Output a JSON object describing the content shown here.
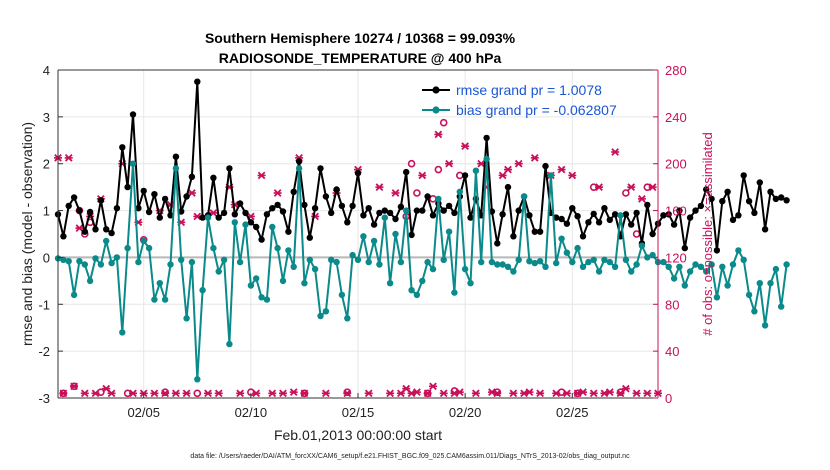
{
  "chart_data": {
    "type": "line",
    "title_line1": "Southern Hemisphere 10274 / 10368 = 99.093%",
    "title_line2": "RADIOSONDE_TEMPERATURE @ 400 hPa",
    "xlabel": "Feb.01,2013 00:00:00 start",
    "ylabel": "rmse and bias (model - observation)",
    "ylabel_right": "# of obs: o=possible; ×=assimilated",
    "footer": "data file: /Users/raeder/DAI/ATM_forcXX/CAM6_setup/f.e21.FHIST_BGC.f09_025.CAM6assim.011/Diags_NTrS_2013-02/obs_diag_output.nc",
    "xlim": [
      1,
      29
    ],
    "ylim": [
      -3,
      4
    ],
    "ylim_right": [
      0,
      280
    ],
    "xticks": [
      {
        "value": 5,
        "label": "02/05"
      },
      {
        "value": 10,
        "label": "02/10"
      },
      {
        "value": 15,
        "label": "02/15"
      },
      {
        "value": 20,
        "label": "02/20"
      },
      {
        "value": 25,
        "label": "02/25"
      }
    ],
    "yticks": [
      {
        "value": -3,
        "label": "-3"
      },
      {
        "value": -2,
        "label": "-2"
      },
      {
        "value": -1,
        "label": "-1"
      },
      {
        "value": 0,
        "label": "0"
      },
      {
        "value": 1,
        "label": "1"
      },
      {
        "value": 2,
        "label": "2"
      },
      {
        "value": 3,
        "label": "3"
      },
      {
        "value": 4,
        "label": "4"
      }
    ],
    "yticks_right": [
      {
        "value": 0,
        "label": "0"
      },
      {
        "value": 40,
        "label": "40"
      },
      {
        "value": 80,
        "label": "80"
      },
      {
        "value": 120,
        "label": "120"
      },
      {
        "value": 160,
        "label": "160"
      },
      {
        "value": 200,
        "label": "200"
      },
      {
        "value": 240,
        "label": "240"
      },
      {
        "value": 280,
        "label": "280"
      }
    ],
    "grid": true,
    "legend_position": "top-right",
    "x_start": 1.0,
    "x_step": 0.25,
    "series": [
      {
        "name": "rmse grand pr = 1.0078",
        "color": "#000000",
        "axis": "left",
        "values": [
          0.92,
          0.45,
          1.1,
          1.28,
          1.0,
          0.55,
          0.97,
          0.6,
          1.22,
          0.6,
          0.52,
          1.05,
          2.35,
          1.5,
          3.05,
          1.05,
          1.42,
          0.97,
          1.35,
          0.85,
          1.25,
          0.9,
          2.15,
          0.98,
          1.3,
          1.72,
          3.75,
          0.85,
          0.9,
          1.7,
          0.85,
          0.95,
          1.9,
          0.92,
          1.15,
          0.95,
          0.75,
          0.65,
          0.38,
          0.92,
          1.05,
          1.12,
          0.98,
          0.55,
          1.4,
          2.05,
          1.12,
          0.42,
          1.05,
          1.9,
          1.3,
          0.95,
          1.45,
          1.1,
          0.75,
          1.1,
          1.8,
          0.9,
          1.05,
          0.7,
          0.95,
          1.0,
          0.95,
          0.82,
          1.08,
          1.82,
          0.48,
          1.0,
          1.0,
          1.3,
          0.9,
          1.15,
          1.0,
          1.1,
          0.95,
          1.3,
          1.75,
          0.85,
          1.25,
          0.9,
          2.55,
          0.98,
          0.3,
          0.92,
          1.5,
          0.45,
          1.0,
          1.3,
          0.9,
          0.55,
          0.55,
          1.95,
          0.95,
          0.85,
          0.82,
          0.72,
          1.05,
          0.88,
          0.45,
          0.75,
          0.93,
          0.75,
          1.05,
          0.8,
          0.92,
          0.45,
          0.92,
          0.7,
          0.95,
          0.3,
          1.12,
          0.5,
          0.72,
          0.9,
          0.92,
          0.7,
          1.0,
          0.2,
          0.85,
          1.0,
          1.1,
          1.45,
          1.25,
          0.15,
          1.2,
          1.4,
          0.8,
          0.9,
          1.75,
          1.2,
          0.95,
          1.6,
          0.6,
          1.4,
          1.25,
          1.28,
          1.22
        ]
      },
      {
        "name": "bias grand pr = -0.062807",
        "color": "#0a8a8a",
        "axis": "left",
        "values": [
          -0.02,
          -0.05,
          -0.08,
          -0.8,
          -0.08,
          -0.15,
          -0.5,
          -0.02,
          -0.15,
          0.35,
          -0.12,
          0.0,
          -1.6,
          0.2,
          2.0,
          -0.1,
          0.35,
          0.2,
          -0.9,
          -0.55,
          -0.9,
          -0.15,
          1.9,
          -0.05,
          -1.3,
          -0.1,
          -2.6,
          -0.7,
          0.85,
          0.2,
          -0.3,
          -0.05,
          -1.85,
          0.75,
          -0.1,
          0.7,
          -0.6,
          -0.45,
          -0.85,
          -0.9,
          0.65,
          0.2,
          -0.5,
          0.15,
          -0.2,
          1.9,
          -0.55,
          -0.05,
          -0.25,
          -1.25,
          -1.15,
          -0.05,
          -0.1,
          -0.8,
          -1.3,
          0.05,
          -0.05,
          0.45,
          -0.1,
          0.35,
          -0.15,
          0.85,
          -0.55,
          0.5,
          -0.1,
          1.0,
          -0.7,
          -0.8,
          -0.5,
          -0.1,
          -0.25,
          1.25,
          -0.05,
          0.55,
          -0.75,
          1.4,
          -0.25,
          -0.55,
          1.85,
          -0.1,
          2.1,
          -0.1,
          -0.15,
          -0.15,
          -0.2,
          -0.3,
          -0.05,
          1.3,
          -0.08,
          -0.12,
          -0.08,
          -0.2,
          1.75,
          -0.12,
          0.4,
          0.1,
          -0.1,
          0.2,
          -0.2,
          -0.1,
          -0.05,
          -0.3,
          -0.05,
          -0.1,
          -0.2,
          0.9,
          -0.05,
          -0.3,
          -0.15,
          0.25,
          0.0,
          0.05,
          -0.1,
          -0.1,
          -0.2,
          -0.45,
          -0.2,
          -0.6,
          -0.3,
          -0.15,
          -0.2,
          -0.3,
          -0.15,
          -0.85,
          -0.2,
          -0.6,
          -0.15,
          0.15,
          -0.05,
          -0.8,
          -1.15,
          -0.55,
          -1.45,
          -0.55,
          -0.25,
          -1.05,
          -0.15
        ]
      }
    ],
    "obs_series": [
      {
        "name": "possible",
        "marker": "o",
        "color": "#c8105a",
        "axis": "right",
        "points": [
          [
            1.25,
            4
          ],
          [
            1.75,
            10
          ],
          [
            2.0,
            160
          ],
          [
            2.25,
            140
          ],
          [
            2.5,
            150
          ],
          [
            3.0,
            5
          ],
          [
            4.25,
            4
          ],
          [
            5.0,
            135
          ],
          [
            6.0,
            5
          ],
          [
            7.5,
            4
          ],
          [
            10.0,
            5
          ],
          [
            12.5,
            4
          ],
          [
            14.5,
            5
          ],
          [
            17.25,
            155
          ],
          [
            17.5,
            200
          ],
          [
            17.75,
            175
          ],
          [
            18.25,
            4
          ],
          [
            18.5,
            170
          ],
          [
            18.75,
            195
          ],
          [
            19.0,
            235
          ],
          [
            19.5,
            6
          ],
          [
            19.75,
            190
          ],
          [
            21.5,
            5
          ],
          [
            24.5,
            5
          ],
          [
            25.25,
            4
          ],
          [
            26.0,
            180
          ],
          [
            27.25,
            5
          ],
          [
            27.5,
            175
          ],
          [
            28.0,
            140
          ],
          [
            28.5,
            180
          ]
        ]
      },
      {
        "name": "assimilated",
        "marker": "x",
        "color": "#c8105a",
        "axis": "right",
        "points": [
          [
            1.0,
            205
          ],
          [
            1.25,
            4
          ],
          [
            1.5,
            205
          ],
          [
            1.75,
            10
          ],
          [
            2.0,
            145
          ],
          [
            2.25,
            4
          ],
          [
            2.5,
            155
          ],
          [
            2.75,
            4
          ],
          [
            3.0,
            170
          ],
          [
            3.25,
            8
          ],
          [
            3.5,
            4
          ],
          [
            4.0,
            200
          ],
          [
            4.5,
            4
          ],
          [
            4.75,
            150
          ],
          [
            5.0,
            4
          ],
          [
            5.5,
            4
          ],
          [
            5.75,
            160
          ],
          [
            6.0,
            4
          ],
          [
            6.25,
            165
          ],
          [
            6.5,
            4
          ],
          [
            6.75,
            150
          ],
          [
            7.0,
            4
          ],
          [
            7.25,
            175
          ],
          [
            7.5,
            155
          ],
          [
            8.0,
            4
          ],
          [
            8.25,
            158
          ],
          [
            8.5,
            4
          ],
          [
            9.0,
            180
          ],
          [
            9.25,
            165
          ],
          [
            9.5,
            4
          ],
          [
            10.0,
            155
          ],
          [
            10.25,
            4
          ],
          [
            10.5,
            190
          ],
          [
            11.0,
            4
          ],
          [
            11.25,
            175
          ],
          [
            11.5,
            4
          ],
          [
            12.0,
            5
          ],
          [
            12.25,
            205
          ],
          [
            12.5,
            4
          ],
          [
            13.0,
            155
          ],
          [
            13.5,
            4
          ],
          [
            14.0,
            175
          ],
          [
            14.5,
            4
          ],
          [
            15.0,
            195
          ],
          [
            15.5,
            4
          ],
          [
            16.0,
            180
          ],
          [
            16.5,
            4
          ],
          [
            16.75,
            175
          ],
          [
            17.0,
            4
          ],
          [
            17.25,
            8
          ],
          [
            17.5,
            4
          ],
          [
            17.75,
            5
          ],
          [
            18.0,
            190
          ],
          [
            18.25,
            4
          ],
          [
            18.5,
            10
          ],
          [
            18.75,
            225
          ],
          [
            19.0,
            4
          ],
          [
            19.25,
            200
          ],
          [
            19.5,
            4
          ],
          [
            19.75,
            5
          ],
          [
            20.0,
            215
          ],
          [
            20.5,
            4
          ],
          [
            20.75,
            200
          ],
          [
            21.0,
            180
          ],
          [
            21.25,
            5
          ],
          [
            21.5,
            4
          ],
          [
            21.75,
            190
          ],
          [
            22.0,
            195
          ],
          [
            22.25,
            4
          ],
          [
            22.5,
            200
          ],
          [
            22.75,
            4
          ],
          [
            23.0,
            5
          ],
          [
            23.25,
            205
          ],
          [
            23.5,
            4
          ],
          [
            24.0,
            190
          ],
          [
            24.25,
            4
          ],
          [
            24.5,
            195
          ],
          [
            24.75,
            4
          ],
          [
            25.0,
            190
          ],
          [
            25.25,
            4
          ],
          [
            25.5,
            5
          ],
          [
            26.0,
            4
          ],
          [
            26.25,
            180
          ],
          [
            26.5,
            4
          ],
          [
            26.75,
            5
          ],
          [
            27.0,
            210
          ],
          [
            27.25,
            4
          ],
          [
            27.5,
            8
          ],
          [
            27.75,
            180
          ],
          [
            28.0,
            4
          ],
          [
            28.25,
            170
          ],
          [
            28.5,
            4
          ],
          [
            28.75,
            180
          ],
          [
            29.0,
            4
          ]
        ]
      }
    ]
  }
}
